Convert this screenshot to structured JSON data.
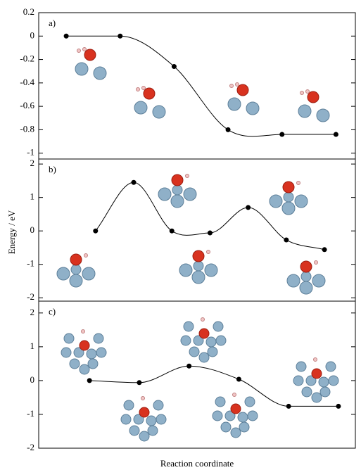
{
  "ylabel": "Energy / eV",
  "xlabel": "Reaction coordinate",
  "chart_data": [
    {
      "type": "line",
      "label": "a)",
      "x": [
        1,
        2,
        3,
        4,
        5,
        6
      ],
      "values": [
        0,
        0,
        -0.26,
        -0.8,
        -0.84,
        -0.84
      ],
      "color": "#000000",
      "xlim": [
        0.49,
        6.36
      ],
      "ylim": [
        -1.05,
        0.2
      ],
      "yticks": [
        -1,
        -0.8,
        -0.6,
        -0.4,
        -0.2,
        0,
        0.2
      ]
    },
    {
      "type": "line",
      "label": "b)",
      "x": [
        1,
        2,
        3,
        4,
        5,
        6,
        7
      ],
      "values": [
        0,
        1.45,
        0,
        -0.06,
        0.7,
        -0.27,
        -0.56
      ],
      "color": "#000000",
      "xlim": [
        -0.49,
        7.81
      ],
      "ylim": [
        -2.1,
        2.15
      ],
      "yticks": [
        -2,
        -1,
        0,
        1,
        2
      ]
    },
    {
      "type": "line",
      "label": "c)",
      "x": [
        1,
        2,
        3,
        4,
        5,
        6
      ],
      "values": [
        0,
        -0.06,
        0.43,
        0.04,
        -0.76,
        -0.76
      ],
      "color": "#000000",
      "xlim": [
        -0.02,
        6.34
      ],
      "ylim": [
        -2,
        2.35
      ],
      "yticks": [
        -2,
        -1,
        0,
        1,
        2
      ]
    }
  ]
}
